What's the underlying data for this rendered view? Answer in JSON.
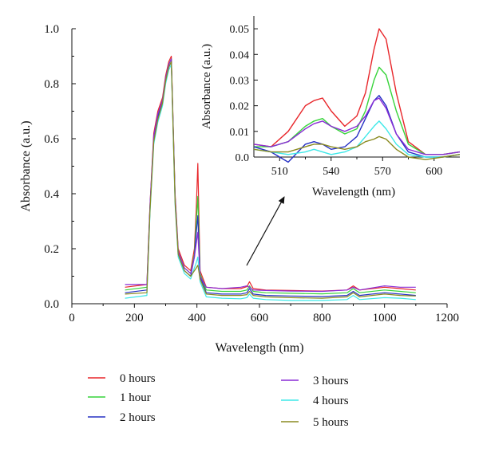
{
  "chart_data": [
    {
      "type": "line",
      "id": "main",
      "title": "",
      "xlabel": "Wavelength (nm)",
      "ylabel": "Absorbance (a.u.)",
      "xlim": [
        0,
        1200
      ],
      "ylim": [
        0,
        1.0
      ],
      "xticks": [
        "0",
        "200",
        "400",
        "600",
        "800",
        "1000",
        "1200"
      ],
      "yticks": [
        "0.0",
        "0.2",
        "0.4",
        "0.6",
        "0.8",
        "1.0"
      ],
      "grid": false,
      "legend": "bottom, two columns",
      "series": [
        {
          "name": "0 hours",
          "color": "#e8262a",
          "peak400": 0.51,
          "peak568": 0.08,
          "baseline": 0.06,
          "x": [
            170,
            240,
            250,
            262,
            275,
            290,
            300,
            310,
            318,
            330,
            340,
            360,
            380,
            392,
            398,
            403,
            410,
            430,
            480,
            540,
            560,
            568,
            580,
            620,
            700,
            800,
            880,
            900,
            920,
            1000,
            1050,
            1100
          ],
          "y": [
            0.06,
            0.07,
            0.36,
            0.62,
            0.7,
            0.75,
            0.83,
            0.88,
            0.9,
            0.4,
            0.2,
            0.14,
            0.12,
            0.2,
            0.35,
            0.51,
            0.12,
            0.06,
            0.055,
            0.055,
            0.062,
            0.08,
            0.055,
            0.05,
            0.048,
            0.046,
            0.05,
            0.065,
            0.05,
            0.06,
            0.055,
            0.05
          ]
        },
        {
          "name": "1 hour",
          "color": "#37d43a",
          "peak400": 0.39,
          "peak568": 0.065,
          "baseline": 0.05,
          "x": [
            170,
            240,
            250,
            262,
            275,
            290,
            300,
            310,
            318,
            330,
            340,
            360,
            380,
            392,
            398,
            403,
            410,
            430,
            480,
            540,
            560,
            568,
            580,
            620,
            700,
            800,
            880,
            900,
            920,
            1000,
            1050,
            1100
          ],
          "y": [
            0.05,
            0.06,
            0.35,
            0.6,
            0.68,
            0.74,
            0.82,
            0.87,
            0.89,
            0.39,
            0.19,
            0.13,
            0.11,
            0.18,
            0.3,
            0.39,
            0.11,
            0.05,
            0.045,
            0.045,
            0.05,
            0.065,
            0.045,
            0.04,
            0.038,
            0.036,
            0.04,
            0.055,
            0.04,
            0.05,
            0.045,
            0.04
          ]
        },
        {
          "name": "2 hours",
          "color": "#2630c4",
          "peak400": 0.32,
          "peak568": 0.055,
          "baseline": 0.04,
          "x": [
            170,
            240,
            250,
            262,
            275,
            290,
            300,
            310,
            318,
            330,
            340,
            360,
            380,
            392,
            398,
            403,
            410,
            430,
            480,
            540,
            560,
            568,
            580,
            620,
            700,
            800,
            880,
            900,
            920,
            1000,
            1050,
            1100
          ],
          "y": [
            0.04,
            0.05,
            0.35,
            0.6,
            0.68,
            0.73,
            0.81,
            0.86,
            0.88,
            0.38,
            0.18,
            0.12,
            0.1,
            0.17,
            0.26,
            0.32,
            0.1,
            0.04,
            0.035,
            0.035,
            0.04,
            0.055,
            0.035,
            0.03,
            0.028,
            0.026,
            0.03,
            0.045,
            0.03,
            0.04,
            0.035,
            0.03
          ]
        },
        {
          "name": "3 hours",
          "color": "#8a2cd6",
          "peak400": 0.26,
          "peak568": 0.06,
          "baseline": 0.07,
          "x": [
            170,
            240,
            250,
            262,
            275,
            290,
            300,
            310,
            318,
            330,
            340,
            360,
            380,
            392,
            398,
            403,
            410,
            430,
            480,
            540,
            560,
            568,
            580,
            620,
            700,
            800,
            880,
            900,
            920,
            1000,
            1050,
            1100
          ],
          "y": [
            0.07,
            0.07,
            0.36,
            0.61,
            0.69,
            0.74,
            0.82,
            0.87,
            0.89,
            0.39,
            0.19,
            0.13,
            0.11,
            0.17,
            0.22,
            0.26,
            0.1,
            0.06,
            0.055,
            0.06,
            0.065,
            0.06,
            0.05,
            0.048,
            0.046,
            0.045,
            0.05,
            0.06,
            0.05,
            0.065,
            0.06,
            0.06
          ]
        },
        {
          "name": "4 hours",
          "color": "#3ee8e8",
          "peak400": 0.17,
          "peak568": 0.035,
          "baseline": 0.02,
          "x": [
            170,
            240,
            250,
            262,
            275,
            290,
            300,
            310,
            318,
            330,
            340,
            360,
            380,
            392,
            398,
            403,
            410,
            430,
            480,
            540,
            560,
            568,
            580,
            620,
            700,
            800,
            880,
            900,
            920,
            1000,
            1050,
            1100
          ],
          "y": [
            0.02,
            0.03,
            0.33,
            0.58,
            0.66,
            0.72,
            0.8,
            0.85,
            0.87,
            0.36,
            0.17,
            0.11,
            0.09,
            0.13,
            0.15,
            0.17,
            0.08,
            0.025,
            0.02,
            0.018,
            0.022,
            0.035,
            0.02,
            0.015,
            0.012,
            0.012,
            0.015,
            0.03,
            0.015,
            0.022,
            0.02,
            0.015
          ]
        },
        {
          "name": "5 hours",
          "color": "#8a8a20",
          "peak400": 0.14,
          "peak568": 0.045,
          "baseline": 0.035,
          "x": [
            170,
            240,
            250,
            262,
            275,
            290,
            300,
            310,
            318,
            330,
            340,
            360,
            380,
            392,
            398,
            403,
            410,
            430,
            480,
            540,
            560,
            568,
            580,
            620,
            700,
            800,
            880,
            900,
            920,
            1000,
            1050,
            1100
          ],
          "y": [
            0.035,
            0.04,
            0.34,
            0.59,
            0.67,
            0.73,
            0.81,
            0.86,
            0.88,
            0.37,
            0.18,
            0.12,
            0.1,
            0.12,
            0.13,
            0.14,
            0.09,
            0.035,
            0.03,
            0.03,
            0.033,
            0.045,
            0.03,
            0.025,
            0.022,
            0.02,
            0.025,
            0.04,
            0.025,
            0.035,
            0.03,
            0.028
          ]
        }
      ]
    },
    {
      "type": "line",
      "id": "inset",
      "title": "",
      "xlabel": "Wavelength (nm)",
      "ylabel": "Absorbance (a.u.)",
      "xlim": [
        495,
        615
      ],
      "ylim": [
        0,
        0.055
      ],
      "xticks": [
        "510",
        "540",
        "570",
        "600"
      ],
      "yticks": [
        "0.0",
        "0.01",
        "0.02",
        "0.03",
        "0.04",
        "0.05"
      ],
      "grid": false,
      "series": [
        {
          "name": "0 hours",
          "color": "#e8262a",
          "x": [
            495,
            505,
            515,
            525,
            530,
            535,
            540,
            548,
            555,
            560,
            565,
            568,
            572,
            578,
            585,
            595,
            605,
            615
          ],
          "y": [
            0.005,
            0.004,
            0.01,
            0.02,
            0.022,
            0.023,
            0.018,
            0.012,
            0.016,
            0.025,
            0.042,
            0.05,
            0.046,
            0.025,
            0.006,
            0.001,
            0.001,
            0.002
          ]
        },
        {
          "name": "1 hour",
          "color": "#37d43a",
          "x": [
            495,
            505,
            515,
            525,
            530,
            535,
            540,
            548,
            555,
            560,
            565,
            568,
            572,
            578,
            585,
            595,
            605,
            615
          ],
          "y": [
            0.004,
            0.004,
            0.006,
            0.012,
            0.014,
            0.015,
            0.012,
            0.009,
            0.011,
            0.018,
            0.03,
            0.035,
            0.032,
            0.018,
            0.005,
            0.001,
            0.001,
            0.002
          ]
        },
        {
          "name": "2 hours",
          "color": "#2630c4",
          "x": [
            495,
            505,
            515,
            525,
            530,
            535,
            540,
            548,
            555,
            560,
            565,
            568,
            572,
            578,
            585,
            595,
            605,
            615
          ],
          "y": [
            0.004,
            0.002,
            -0.002,
            0.005,
            0.006,
            0.005,
            0.003,
            0.004,
            0.008,
            0.015,
            0.022,
            0.024,
            0.02,
            0.009,
            0.002,
            0.0,
            0.0,
            0.001
          ]
        },
        {
          "name": "3 hours",
          "color": "#8a2cd6",
          "x": [
            495,
            505,
            515,
            525,
            530,
            535,
            540,
            548,
            555,
            560,
            565,
            568,
            572,
            578,
            585,
            595,
            605,
            615
          ],
          "y": [
            0.005,
            0.004,
            0.006,
            0.011,
            0.013,
            0.014,
            0.012,
            0.01,
            0.012,
            0.016,
            0.022,
            0.023,
            0.019,
            0.009,
            0.003,
            0.001,
            0.001,
            0.002
          ]
        },
        {
          "name": "4 hours",
          "color": "#3ee8e8",
          "x": [
            495,
            505,
            515,
            525,
            530,
            535,
            540,
            548,
            555,
            560,
            565,
            568,
            572,
            578,
            585,
            595,
            605,
            615
          ],
          "y": [
            0.003,
            0.002,
            0.001,
            0.002,
            0.003,
            0.002,
            0.001,
            0.002,
            0.004,
            0.008,
            0.012,
            0.014,
            0.011,
            0.005,
            0.001,
            0.0,
            0.0,
            0.001
          ]
        },
        {
          "name": "5 hours",
          "color": "#8a8a20",
          "x": [
            495,
            505,
            515,
            525,
            530,
            535,
            540,
            548,
            555,
            560,
            565,
            568,
            572,
            578,
            585,
            595,
            605,
            615
          ],
          "y": [
            0.003,
            0.002,
            0.002,
            0.004,
            0.005,
            0.005,
            0.004,
            0.003,
            0.004,
            0.006,
            0.007,
            0.008,
            0.007,
            0.003,
            0.0,
            -0.001,
            0.0,
            0.001
          ]
        }
      ]
    }
  ]
}
